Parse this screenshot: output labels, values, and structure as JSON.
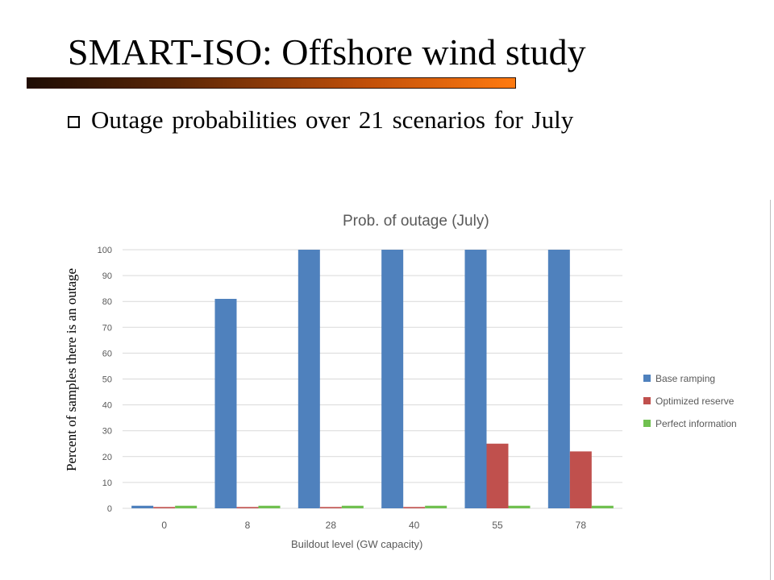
{
  "slide": {
    "title": "SMART-ISO: Offshore wind study",
    "bullet": "Outage probabilities over 21 scenarios for July"
  },
  "chart_data": {
    "type": "bar",
    "title": "Prob. of outage (July)",
    "xlabel": "Buildout level (GW capacity)",
    "ylabel": "Percent of samples there is an outage",
    "categories": [
      "0",
      "8",
      "28",
      "40",
      "55",
      "78"
    ],
    "ylim": [
      0,
      100
    ],
    "yticks": [
      0,
      10,
      20,
      30,
      40,
      50,
      60,
      70,
      80,
      90,
      100
    ],
    "grid": true,
    "legend_position": "right",
    "series": [
      {
        "name": "Base ramping",
        "color": "#4f81bd",
        "values": [
          1,
          81,
          100,
          100,
          100,
          100
        ]
      },
      {
        "name": "Optimized reserve",
        "color": "#c0504d",
        "values": [
          0.5,
          0.5,
          0.5,
          0.5,
          25,
          22
        ]
      },
      {
        "name": "Perfect information",
        "color": "#70c050",
        "values": [
          1,
          1,
          1,
          1,
          1,
          1
        ]
      }
    ]
  }
}
